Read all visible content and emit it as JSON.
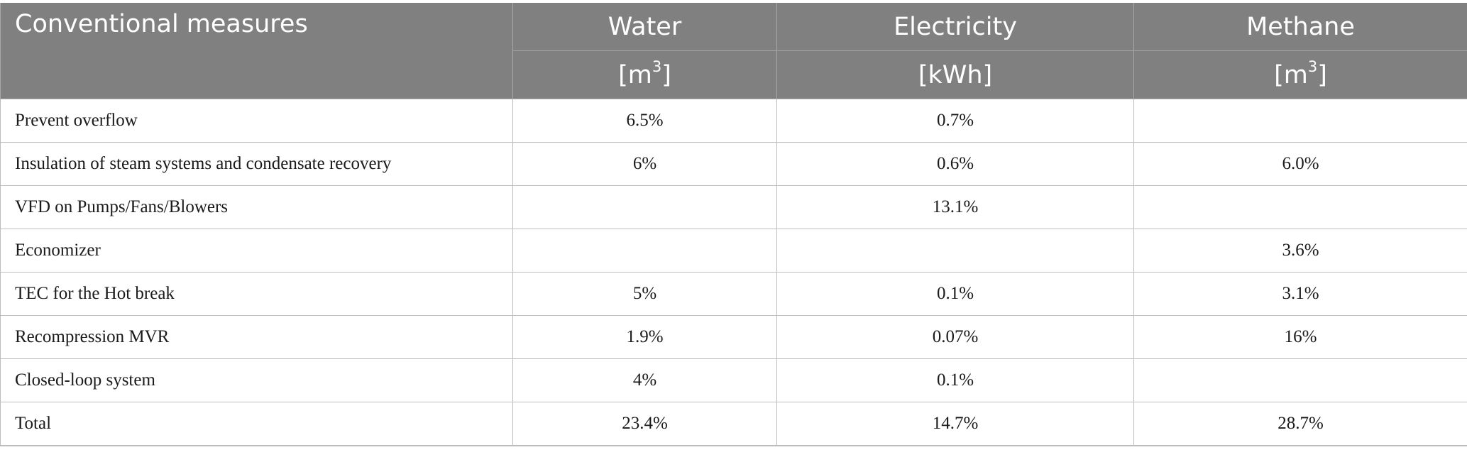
{
  "table": {
    "header": {
      "first_column": "Conventional measures",
      "columns": [
        {
          "name": "Water",
          "unit_prefix": "[m",
          "unit_sup": "3",
          "unit_suffix": "]"
        },
        {
          "name": "Electricity",
          "unit_prefix": "[kWh]",
          "unit_sup": "",
          "unit_suffix": ""
        },
        {
          "name": "Methane",
          "unit_prefix": "[m",
          "unit_sup": "3",
          "unit_suffix": "]"
        }
      ]
    },
    "rows": [
      {
        "label": "Prevent overflow",
        "water": "6.5%",
        "electricity": "0.7%",
        "methane": ""
      },
      {
        "label": "Insulation of steam systems and condensate recovery",
        "water": "6%",
        "electricity": "0.6%",
        "methane": "6.0%"
      },
      {
        "label": "VFD on Pumps/Fans/Blowers",
        "water": "",
        "electricity": "13.1%",
        "methane": ""
      },
      {
        "label": "Economizer",
        "water": "",
        "electricity": "",
        "methane": "3.6%"
      },
      {
        "label": "TEC for the Hot break",
        "water": "5%",
        "electricity": "0.1%",
        "methane": "3.1%"
      },
      {
        "label": "Recompression MVR",
        "water": "1.9%",
        "electricity": "0.07%",
        "methane": "16%"
      },
      {
        "label": "Closed-loop system",
        "water": "4%",
        "electricity": "0.1%",
        "methane": ""
      },
      {
        "label": "Total",
        "water": "23.4%",
        "electricity": "14.7%",
        "methane": "28.7%"
      }
    ]
  }
}
